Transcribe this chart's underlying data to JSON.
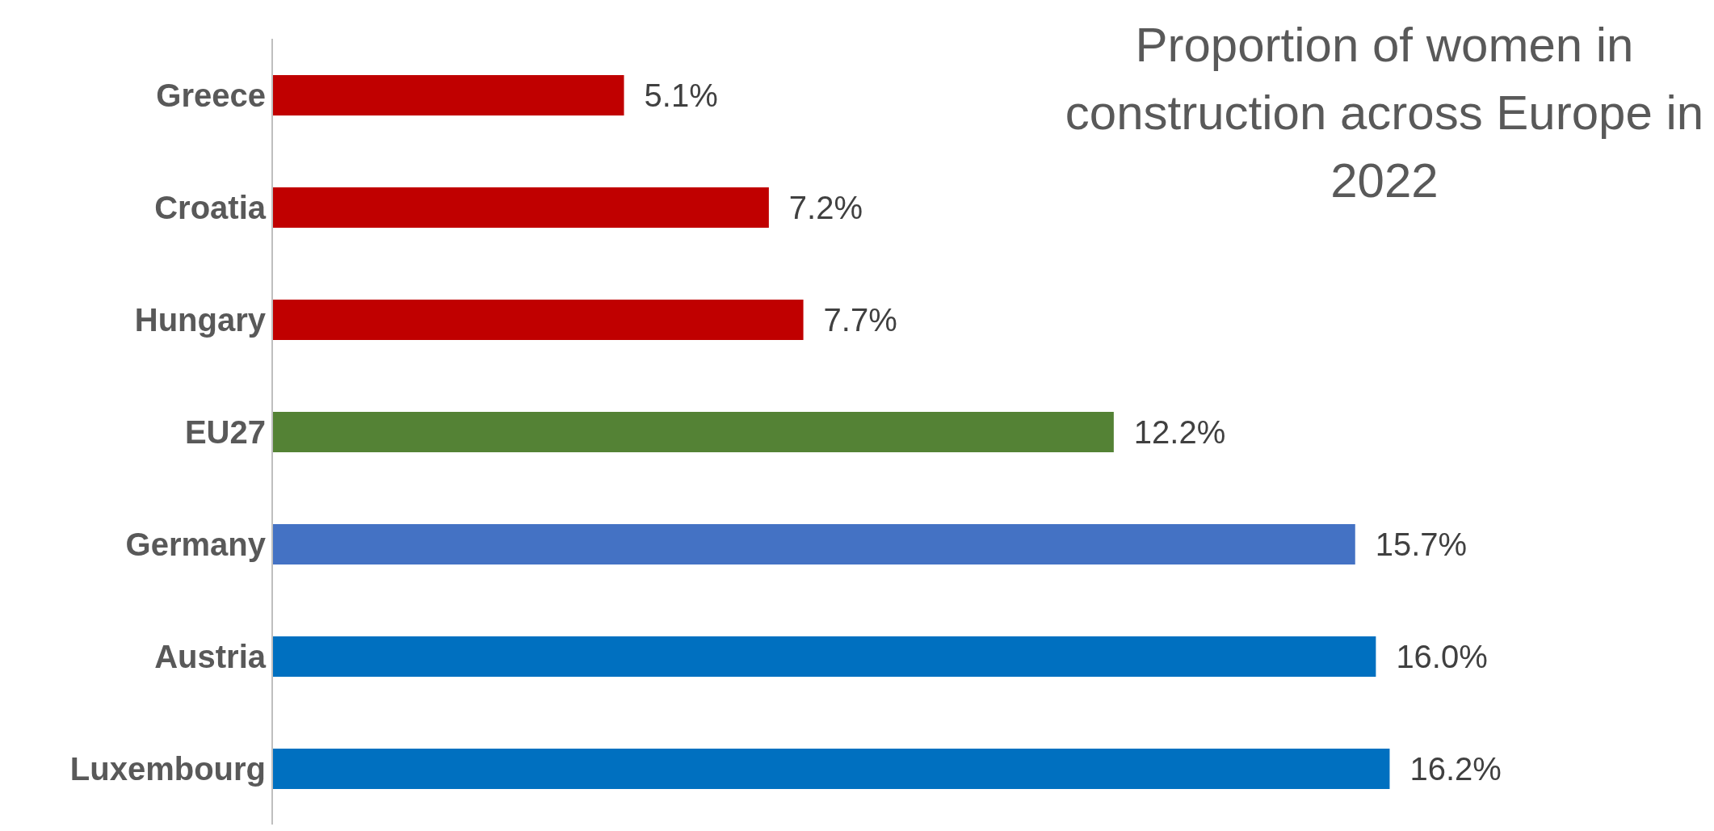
{
  "chart_data": {
    "type": "bar",
    "orientation": "horizontal",
    "title": "Proportion of women in construction across Europe in 2022",
    "categories": [
      "Greece",
      "Croatia",
      "Hungary",
      "EU27",
      "Germany",
      "Austria",
      "Luxembourg"
    ],
    "values": [
      5.1,
      7.2,
      7.7,
      12.2,
      15.7,
      16.0,
      16.2
    ],
    "colors": [
      "#c00000",
      "#c00000",
      "#c00000",
      "#548235",
      "#4472c4",
      "#0070c0",
      "#0070c0"
    ],
    "value_labels": [
      "5.1%",
      "7.2%",
      "7.7%",
      "12.2%",
      "15.7%",
      "16.0%",
      "16.2%"
    ]
  }
}
